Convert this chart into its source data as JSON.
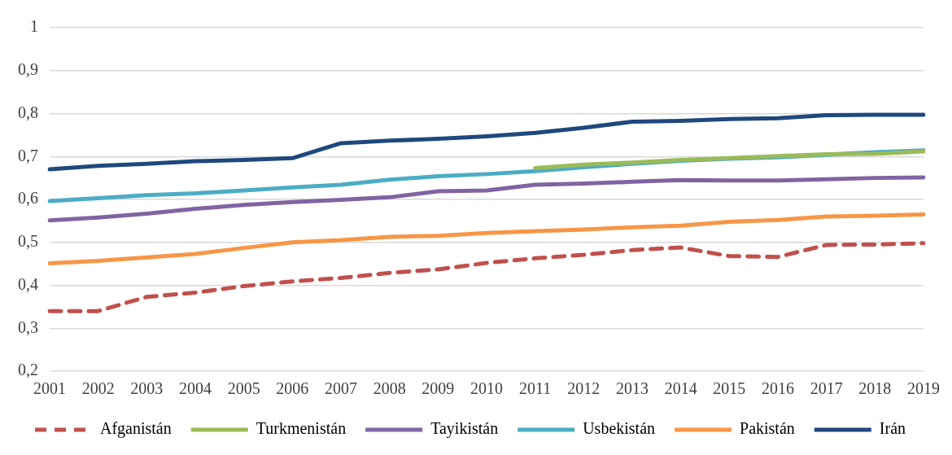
{
  "chart_data": {
    "type": "line",
    "categories": [
      "2001",
      "2002",
      "2003",
      "2004",
      "2005",
      "2006",
      "2007",
      "2008",
      "2009",
      "2010",
      "2011",
      "2012",
      "2013",
      "2014",
      "2015",
      "2016",
      "2017",
      "2018",
      "2019"
    ],
    "ylim": [
      0.2,
      1
    ],
    "yticks": [
      {
        "value": 0.2,
        "label": "0,2"
      },
      {
        "value": 0.3,
        "label": "0,3"
      },
      {
        "value": 0.4,
        "label": "0,4"
      },
      {
        "value": 0.5,
        "label": "0,5"
      },
      {
        "value": 0.6,
        "label": "0,6"
      },
      {
        "value": 0.7,
        "label": "0,7"
      },
      {
        "value": 0.8,
        "label": "0,8"
      },
      {
        "value": 0.9,
        "label": "0,9"
      },
      {
        "value": 1,
        "label": "1"
      }
    ],
    "grid": "y",
    "legend": "bottom",
    "marker": "none",
    "line_style": "solid",
    "series": [
      {
        "name": "Afganistán",
        "color": "#c0504d",
        "line_style": "dashed",
        "values": [
          0.34,
          0.34,
          0.373,
          0.383,
          0.398,
          0.409,
          0.417,
          0.429,
          0.437,
          0.452,
          0.463,
          0.471,
          0.482,
          0.488,
          0.468,
          0.466,
          0.494,
          0.495,
          0.498
        ]
      },
      {
        "name": "Turkmenistán",
        "color": "#9bbb59",
        "values": [
          null,
          null,
          null,
          null,
          null,
          null,
          null,
          null,
          null,
          null,
          0.673,
          0.681,
          0.686,
          0.692,
          0.696,
          0.701,
          0.705,
          0.706,
          0.712
        ]
      },
      {
        "name": "Tayikistán",
        "color": "#8064a2",
        "values": [
          0.551,
          0.558,
          0.567,
          0.578,
          0.587,
          0.594,
          0.599,
          0.605,
          0.619,
          0.621,
          0.634,
          0.637,
          0.641,
          0.645,
          0.644,
          0.644,
          0.647,
          0.65,
          0.651
        ]
      },
      {
        "name": "Usbekistán",
        "color": "#4bacc6",
        "values": [
          0.596,
          0.603,
          0.61,
          0.614,
          0.621,
          0.628,
          0.634,
          0.646,
          0.654,
          0.659,
          0.666,
          0.675,
          0.683,
          0.69,
          0.695,
          0.698,
          0.704,
          0.71,
          0.714
        ]
      },
      {
        "name": "Pakistán",
        "color": "#f79646",
        "values": [
          0.451,
          0.457,
          0.465,
          0.473,
          0.487,
          0.5,
          0.505,
          0.513,
          0.515,
          0.522,
          0.526,
          0.53,
          0.535,
          0.539,
          0.548,
          0.552,
          0.56,
          0.562,
          0.565
        ]
      },
      {
        "name": "Irán",
        "color": "#1f497d",
        "values": [
          0.67,
          0.678,
          0.683,
          0.689,
          0.692,
          0.696,
          0.731,
          0.737,
          0.741,
          0.747,
          0.755,
          0.767,
          0.781,
          0.783,
          0.787,
          0.789,
          0.796,
          0.797,
          0.797
        ]
      }
    ]
  }
}
